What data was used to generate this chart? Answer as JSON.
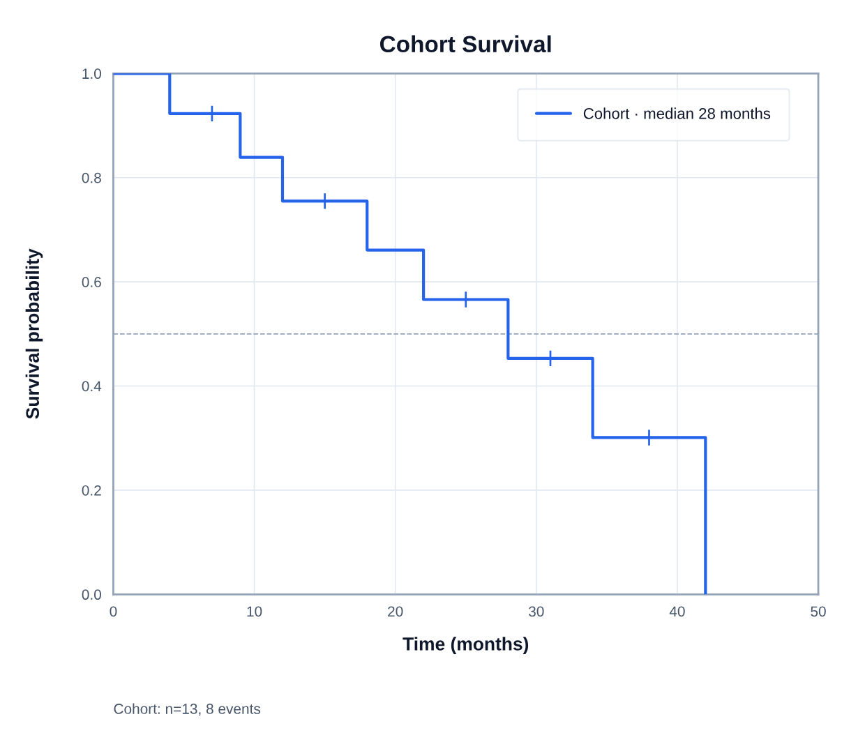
{
  "chart_data": {
    "type": "step",
    "title": "Cohort Survival",
    "xlabel": "Time (months)",
    "ylabel": "Survival probability",
    "series": [
      {
        "name": "Cohort · median 28 months",
        "color": "#2563eb",
        "x": [
          0,
          4,
          9,
          12,
          18,
          22,
          28,
          34,
          42
        ],
        "values": [
          1.0,
          0.923,
          0.839,
          0.755,
          0.661,
          0.566,
          0.453,
          0.301,
          0.0
        ]
      },
      {
        "type": "scatter",
        "marker": "cross",
        "color": "#2563eb",
        "x": [
          7,
          15,
          25,
          31,
          38
        ],
        "values": [
          0.923,
          0.755,
          0.566,
          0.453,
          0.301
        ]
      }
    ],
    "xlim": [
      0,
      50
    ],
    "xticks": [
      0,
      10,
      20,
      30,
      40,
      50
    ],
    "ylim": [
      0,
      1.0
    ],
    "yticks": [
      {
        "value": 0,
        "label": "0.0"
      },
      {
        "value": 0.2,
        "label": "0.2"
      },
      {
        "value": 0.4,
        "label": "0.4"
      },
      {
        "value": 0.6,
        "label": "0.6"
      },
      {
        "value": 0.8,
        "label": "0.8"
      },
      {
        "value": 1.0,
        "label": "1.0"
      }
    ],
    "ref_lines": [
      {
        "axis": "y",
        "value": 0.5,
        "color": "#94a3b8",
        "line_style": "dashed"
      }
    ],
    "annotations": [
      "Cohort: n=13, 8 events"
    ],
    "grid": true,
    "legend": "top right"
  }
}
